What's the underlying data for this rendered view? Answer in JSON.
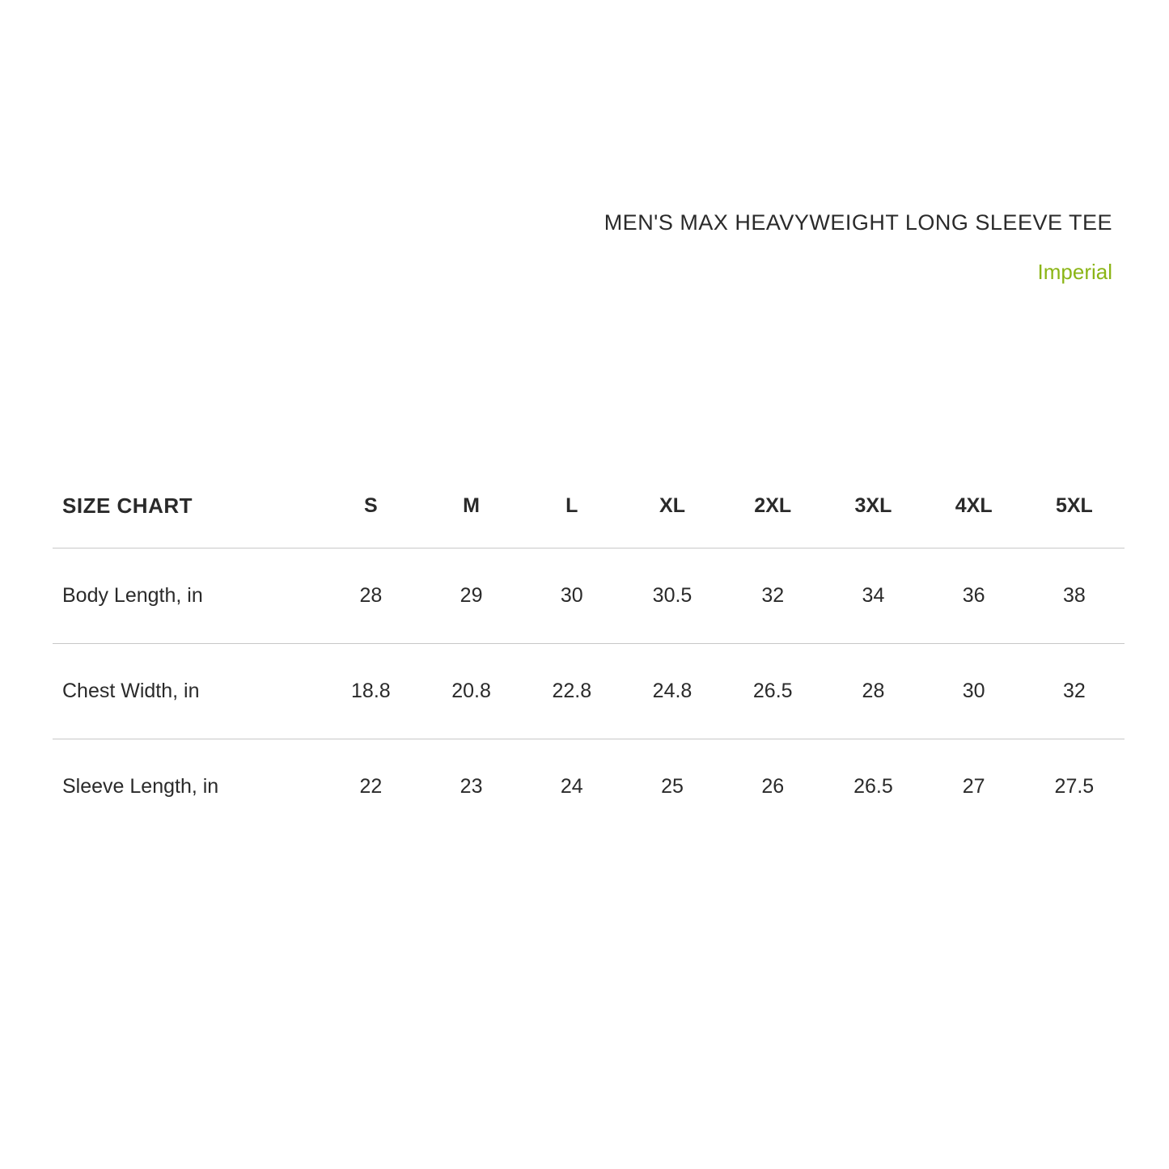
{
  "header": {
    "product_title": "MEN'S MAX HEAVYWEIGHT LONG SLEEVE TEE",
    "unit_label": "Imperial"
  },
  "table": {
    "label": "SIZE CHART",
    "sizes": [
      "S",
      "M",
      "L",
      "XL",
      "2XL",
      "3XL",
      "4XL",
      "5XL"
    ],
    "rows": [
      {
        "label": "Body Length, in",
        "values": [
          "28",
          "29",
          "30",
          "30.5",
          "32",
          "34",
          "36",
          "38"
        ]
      },
      {
        "label": "Chest Width, in",
        "values": [
          "18.8",
          "20.8",
          "22.8",
          "24.8",
          "26.5",
          "28",
          "30",
          "32"
        ]
      },
      {
        "label": "Sleeve Length, in",
        "values": [
          "22",
          "23",
          "24",
          "25",
          "26",
          "26.5",
          "27",
          "27.5"
        ]
      }
    ]
  },
  "style": {
    "background_color": "#ffffff",
    "text_color": "#2a2a2a",
    "accent_color": "#8bb516",
    "rule_color": "#c8c8c8",
    "title_fontsize": 27,
    "unit_fontsize": 26,
    "header_fontsize": 26,
    "cell_fontsize": 25,
    "header_weight": 700,
    "cell_weight": 400,
    "label_col_width_pct": 25,
    "size_col_width_pct": 9.375,
    "row_padding_v": 44
  }
}
